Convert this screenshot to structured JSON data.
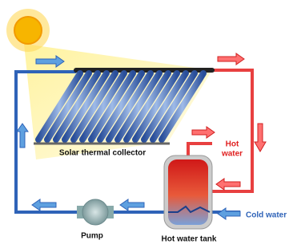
{
  "labels": {
    "collector": "Solar thermal collector",
    "hot_water": [
      "Hot",
      "water"
    ],
    "cold_water": "Cold water",
    "pump": "Pump",
    "tank": "Hot water tank"
  }
}
